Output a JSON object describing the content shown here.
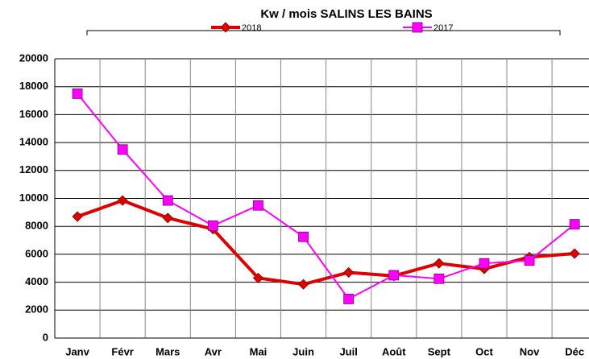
{
  "chart_data": {
    "type": "line",
    "title": "Kw / mois  SALINS LES BAINS",
    "categories": [
      "Janv",
      "Févr",
      "Mars",
      "Avr",
      "Mai",
      "Juin",
      "Juil",
      "Août",
      "Sept",
      "Oct",
      "Nov",
      "Déc"
    ],
    "series": [
      {
        "name": "2018",
        "color": "#e00000",
        "marker": "diamond",
        "values": [
          8700,
          9850,
          8600,
          7800,
          4300,
          3850,
          4700,
          4450,
          5350,
          4950,
          5800,
          6050
        ]
      },
      {
        "name": "2017",
        "color": "#ff00ff",
        "marker": "square",
        "values": [
          17500,
          13500,
          9850,
          8050,
          9500,
          7250,
          2800,
          4500,
          4250,
          5350,
          5550,
          8150
        ]
      }
    ],
    "ylim": [
      0,
      20000
    ],
    "yticks": [
      0,
      2000,
      4000,
      6000,
      8000,
      10000,
      12000,
      14000,
      16000,
      18000,
      20000
    ],
    "grid": true
  }
}
